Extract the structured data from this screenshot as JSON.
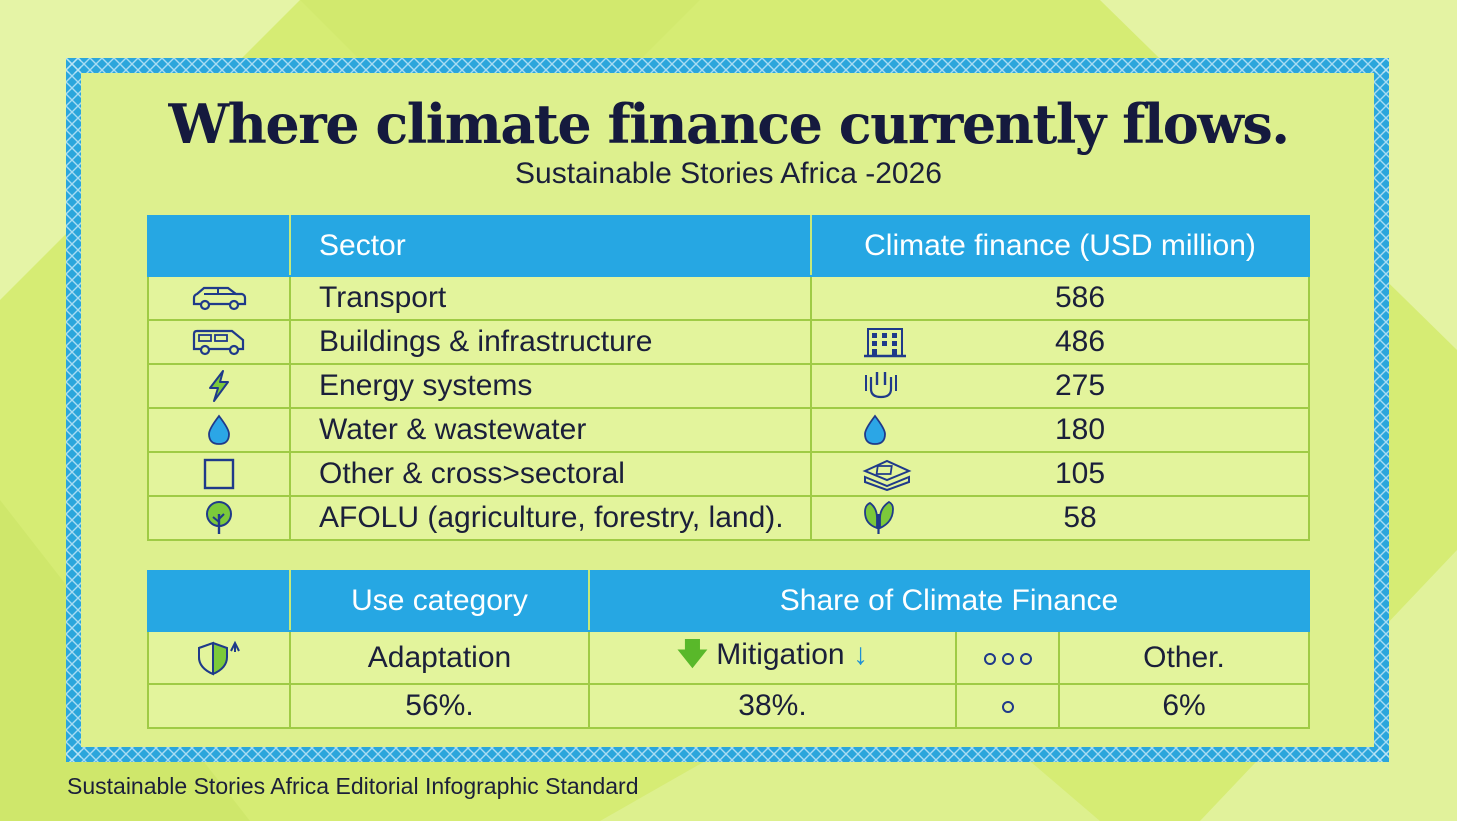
{
  "title": "Where climate finance currently flows.",
  "subtitle": "Sustainable Stories Africa -2026",
  "footer": "Sustainable Stories Africa Editorial Infographic Standard",
  "colors": {
    "header": "#26a7e3",
    "frame": "#2ba6dc",
    "cell": "#e3f49c",
    "background": "#d8ee78",
    "text": "#1b1f3a"
  },
  "chart_data": [
    {
      "type": "table",
      "columns": [
        "",
        "Sector",
        "Climate finance (USD million)"
      ],
      "rows": [
        {
          "sector": "Transport",
          "value": 586,
          "row_icon": "car-icon",
          "value_icon": ""
        },
        {
          "sector": "Buildings & infrastructure",
          "value": 486,
          "row_icon": "van-icon",
          "value_icon": "building-icon"
        },
        {
          "sector": "Energy systems",
          "value": 275,
          "row_icon": "lightning-icon",
          "value_icon": "plug-icon"
        },
        {
          "sector": "Water & wastewater",
          "value": 180,
          "row_icon": "water-drop-icon",
          "value_icon": "water-drop-icon"
        },
        {
          "sector": "Other & cross>sectoral",
          "value": 105,
          "row_icon": "square-icon",
          "value_icon": "layers-icon"
        },
        {
          "sector": "AFOLU (agriculture, forestry, land).",
          "value": 58,
          "row_icon": "tree-icon",
          "value_icon": "leaf-icon"
        }
      ]
    },
    {
      "type": "table",
      "columns": [
        "",
        "Use category",
        "Share of Climate Finance"
      ],
      "categories": [
        "Adaptation",
        "Mitigation",
        "Other."
      ],
      "values_text": [
        "56%.",
        "38%.",
        "6%"
      ],
      "values": [
        56,
        38,
        6
      ],
      "unit": "%",
      "row_icon": "shield-icon",
      "marker_icons": [
        "three-circles-icon",
        "circle-icon"
      ]
    }
  ]
}
